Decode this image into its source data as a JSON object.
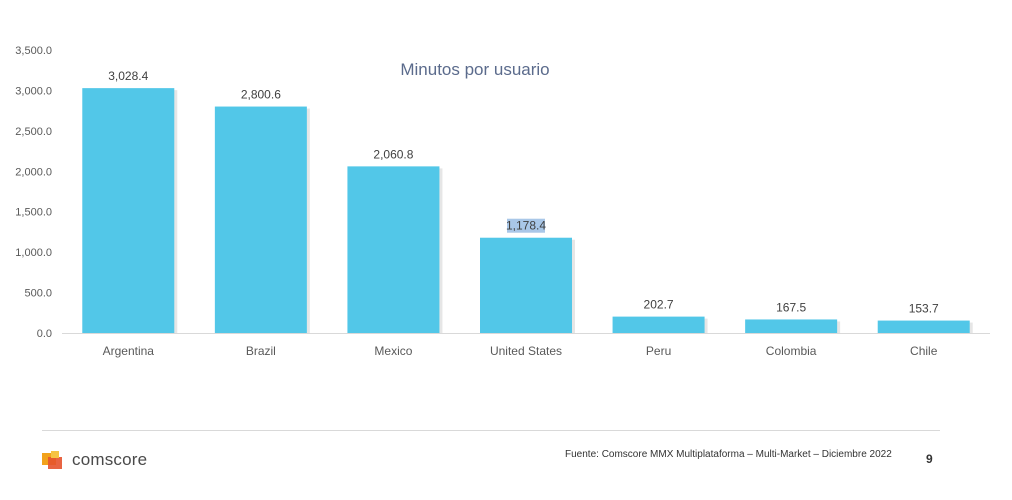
{
  "chart_data": {
    "type": "bar",
    "title": "Minutos por usuario",
    "categories": [
      "Argentina",
      "Brazil",
      "Mexico",
      "United States",
      "Peru",
      "Colombia",
      "Chile"
    ],
    "values": [
      3028.4,
      2800.6,
      2060.8,
      1178.4,
      202.7,
      167.5,
      153.7
    ],
    "value_labels": [
      "3,028.4",
      "2,800.6",
      "2,060.8",
      "1,178.4",
      "202.7",
      "167.5",
      "153.7"
    ],
    "yticks": [
      "0.0",
      "500.0",
      "1,000.0",
      "1,500.0",
      "2,000.0",
      "2,500.0",
      "3,000.0",
      "3,500.0"
    ],
    "ylim": [
      0,
      3500
    ],
    "grid": false,
    "bar_color": "#52c7e8",
    "highlight_color": "#a9c7e8"
  },
  "footer": {
    "brand": "comscore",
    "source": "Fuente: Comscore MMX Multiplataforma – Multi-Market – Diciembre 2022",
    "page_number": "9"
  }
}
